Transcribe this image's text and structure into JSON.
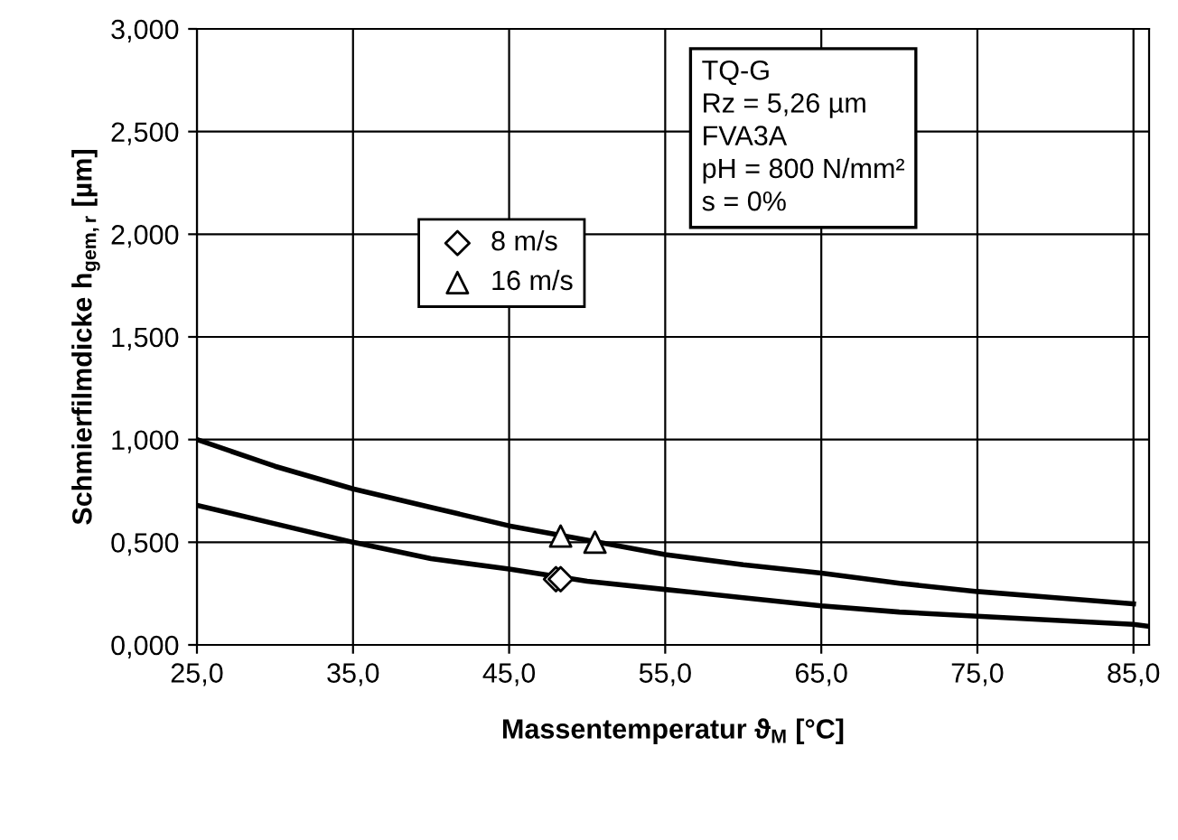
{
  "chart_data": {
    "type": "line",
    "xlabel": "Massentemperatur ϑ$_{M}$ [°C]",
    "ylabel": "Schmierfilmdicke h$_{gem,r}$ [µm]",
    "xlim": [
      25,
      86
    ],
    "ylim": [
      0,
      3
    ],
    "xticks": [
      {
        "value": 25,
        "label": "25,0"
      },
      {
        "value": 35,
        "label": "35,0"
      },
      {
        "value": 45,
        "label": "45,0"
      },
      {
        "value": 55,
        "label": "55,0"
      },
      {
        "value": 65,
        "label": "65,0"
      },
      {
        "value": 75,
        "label": "75,0"
      },
      {
        "value": 85,
        "label": "85,0"
      }
    ],
    "yticks": [
      {
        "value": 0,
        "label": "0,000"
      },
      {
        "value": 0.5,
        "label": "0,500"
      },
      {
        "value": 1,
        "label": "1,000"
      },
      {
        "value": 1.5,
        "label": "1,500"
      },
      {
        "value": 2,
        "label": "2,000"
      },
      {
        "value": 2.5,
        "label": "2,500"
      },
      {
        "value": 3,
        "label": "3,000"
      }
    ],
    "grid": true,
    "legend": "center",
    "series": [
      {
        "color": "#000000",
        "marker": "none",
        "x": [
          25,
          30,
          35,
          40,
          45,
          50,
          55,
          60,
          65,
          70,
          75,
          80,
          85
        ],
        "values": [
          1.0,
          0.87,
          0.76,
          0.67,
          0.58,
          0.51,
          0.44,
          0.39,
          0.35,
          0.3,
          0.26,
          0.23,
          0.2
        ]
      },
      {
        "color": "#000000",
        "marker": "none",
        "x": [
          25,
          30,
          35,
          40,
          45,
          50,
          55,
          60,
          65,
          70,
          75,
          80,
          85,
          86
        ],
        "values": [
          0.68,
          0.59,
          0.5,
          0.42,
          0.37,
          0.31,
          0.27,
          0.23,
          0.19,
          0.16,
          0.14,
          0.12,
          0.1,
          0.09
        ]
      },
      {
        "type": "scatter",
        "name": "8 m/s",
        "color": "#000000",
        "marker": "diamond",
        "x": [
          48.0,
          48.3
        ],
        "values": [
          0.32,
          0.32
        ]
      },
      {
        "type": "scatter",
        "name": "16 m/s",
        "color": "#000000",
        "marker": "triangle",
        "x": [
          48.3,
          50.5
        ],
        "values": [
          0.53,
          0.5
        ]
      }
    ],
    "annotations": [
      "TQ-G\nRz = 5,26 µm\nFVA3A\npH = 800 N/mm²\ns = 0%"
    ]
  }
}
